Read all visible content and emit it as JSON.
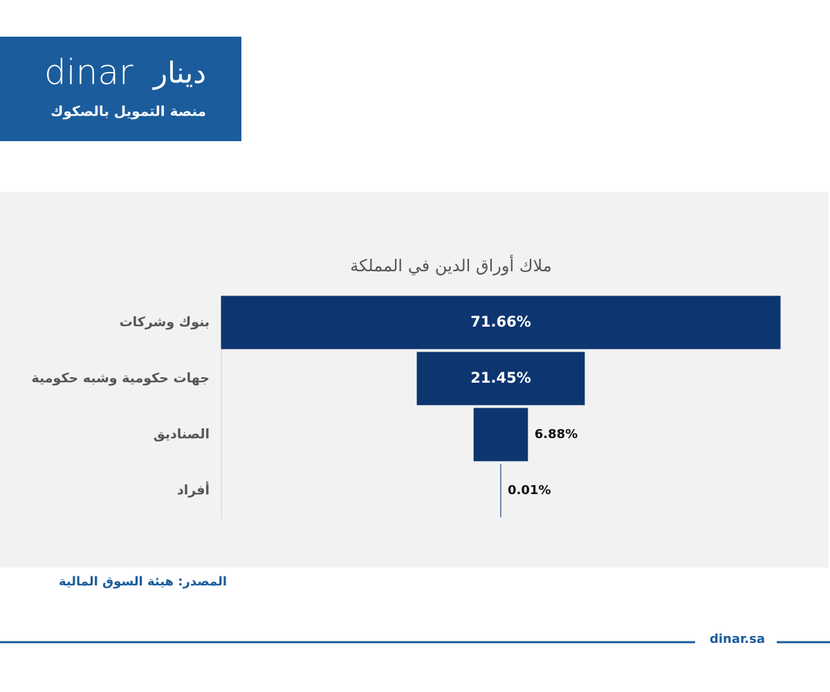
{
  "header": {
    "logo_latin": "dinar",
    "logo_arabic": "دينار",
    "tagline": "منصة التمويل بالصكوك"
  },
  "chart_data": {
    "type": "funnel",
    "title": "ملاك أوراق الدين في المملكة",
    "categories": [
      "بنوك وشركات",
      "جهات حكومية وشبه حكومية",
      "الصناديق",
      "أفراد"
    ],
    "values": [
      71.66,
      21.45,
      6.88,
      0.01
    ],
    "value_labels": [
      "71.66%",
      "21.45%",
      "6.88%",
      "0.01%"
    ],
    "color": "#0d3570"
  },
  "source": "المصدر: هيئة السوق المالية",
  "footer": {
    "site": "dinar.sa"
  }
}
